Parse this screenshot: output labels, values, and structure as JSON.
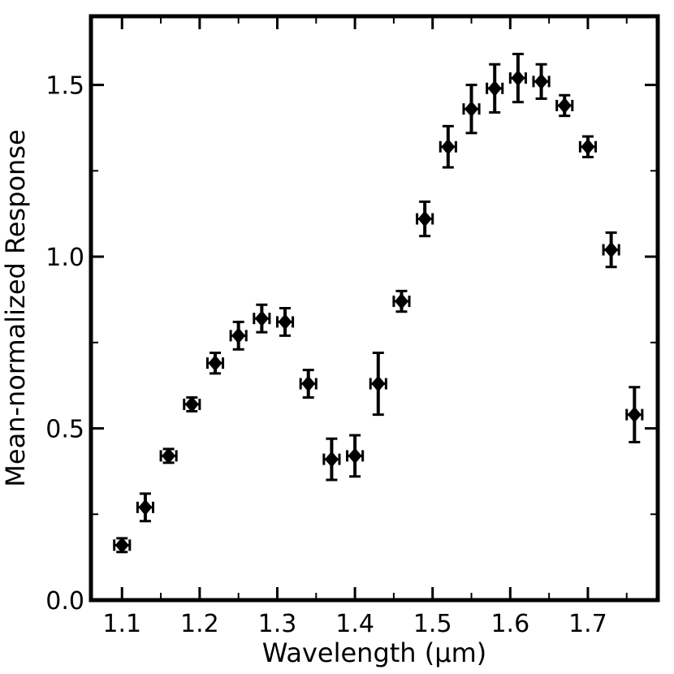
{
  "chart_data": {
    "type": "scatter",
    "title": "",
    "xlabel": "Wavelength (μm)",
    "ylabel": "Mean-normalized Response",
    "xlim": [
      1.06,
      1.79
    ],
    "ylim": [
      0.0,
      1.7
    ],
    "x_ticks": [
      "1.1",
      "1.2",
      "1.3",
      "1.4",
      "1.5",
      "1.6",
      "1.7"
    ],
    "y_ticks": [
      "0.0",
      "0.5",
      "1.0",
      "1.5"
    ],
    "grid": false,
    "marker": "filled-diamond",
    "x_error": 0.01,
    "series": [
      {
        "name": "response",
        "x": [
          1.1,
          1.13,
          1.16,
          1.19,
          1.22,
          1.25,
          1.28,
          1.31,
          1.34,
          1.37,
          1.4,
          1.43,
          1.46,
          1.49,
          1.52,
          1.55,
          1.58,
          1.61,
          1.64,
          1.67,
          1.7,
          1.73,
          1.76
        ],
        "y": [
          0.16,
          0.27,
          0.42,
          0.57,
          0.69,
          0.77,
          0.82,
          0.81,
          0.63,
          0.41,
          0.42,
          0.63,
          0.87,
          1.11,
          1.32,
          1.43,
          1.49,
          1.52,
          1.51,
          1.44,
          1.32,
          1.02,
          0.54
        ],
        "yerr": [
          0.02,
          0.04,
          0.02,
          0.02,
          0.03,
          0.04,
          0.04,
          0.04,
          0.04,
          0.06,
          0.06,
          0.09,
          0.03,
          0.05,
          0.06,
          0.07,
          0.07,
          0.07,
          0.05,
          0.03,
          0.03,
          0.05,
          0.08
        ]
      }
    ]
  }
}
